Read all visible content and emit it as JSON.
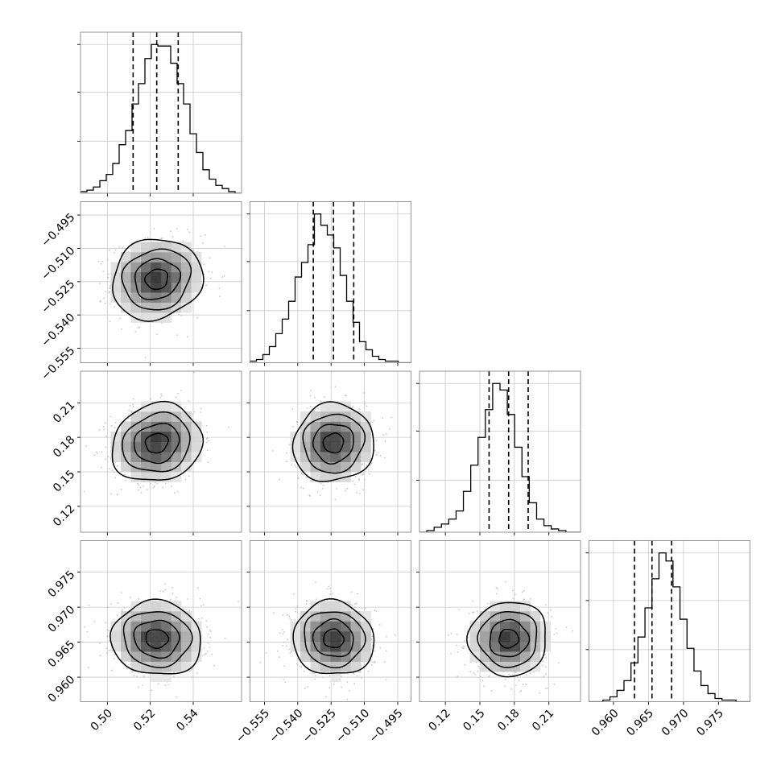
{
  "chart_data": {
    "type": "corner",
    "grid": true,
    "parameters": [
      {
        "median": 0.523,
        "q16": 0.512,
        "q84": 0.533,
        "range": [
          0.4875,
          0.5625
        ],
        "ticks": [
          0.5,
          0.52,
          0.54
        ],
        "tick_labels": [
          "0.50",
          "0.52",
          "0.54"
        ],
        "hist_counts": [
          1,
          2,
          4,
          8,
          12,
          19,
          31,
          40,
          57,
          70,
          86,
          95,
          94,
          94,
          83,
          70,
          57,
          38,
          26,
          15,
          9,
          5,
          3,
          1,
          0
        ]
      },
      {
        "median": -0.5239,
        "q16": -0.533,
        "q84": -0.5148,
        "range": [
          -0.5615,
          -0.489
        ],
        "ticks": [
          -0.555,
          -0.54,
          -0.525,
          -0.51,
          -0.495
        ],
        "tick_labels": [
          "−0.555",
          "−0.540",
          "−0.525",
          "−0.510",
          "−0.495"
        ],
        "hist_counts": [
          1,
          2,
          5,
          10,
          18,
          27,
          38,
          53,
          62,
          73,
          92,
          85,
          79,
          71,
          54,
          38,
          25,
          13,
          8,
          4,
          2,
          1,
          1,
          0,
          0
        ]
      },
      {
        "median": 0.175,
        "q16": 0.158,
        "q84": 0.192,
        "range": [
          0.0975,
          0.2375
        ],
        "ticks": [
          0.12,
          0.15,
          0.18,
          0.21
        ],
        "tick_labels": [
          "0.12",
          "0.15",
          "0.18",
          "0.21"
        ],
        "hist_counts": [
          0,
          1,
          3,
          5,
          8,
          13,
          25,
          41,
          58,
          75,
          91,
          87,
          72,
          52,
          34,
          18,
          8,
          4,
          2,
          1,
          0,
          0
        ]
      },
      {
        "median": 0.9655,
        "q16": 0.963,
        "q84": 0.9683,
        "range": [
          0.9565,
          0.9795
        ],
        "ticks": [
          0.96,
          0.965,
          0.97,
          0.975
        ],
        "tick_labels": [
          "0.960",
          "0.965",
          "0.970",
          "0.975"
        ],
        "hist_counts": [
          0,
          0,
          1,
          3,
          7,
          13,
          24,
          40,
          58,
          76,
          92,
          87,
          71,
          51,
          33,
          19,
          10,
          5,
          2,
          1,
          1,
          0,
          0
        ]
      }
    ],
    "correlations": [
      [
        1.0,
        0.1,
        0.12,
        -0.05
      ],
      [
        0.1,
        1.0,
        0.05,
        -0.05
      ],
      [
        0.12,
        0.05,
        1.0,
        0.02
      ],
      [
        -0.05,
        -0.05,
        0.02,
        1.0
      ]
    ],
    "contour_levels_sigma": [
      0.5,
      1.0,
      1.5,
      2.0
    ],
    "colors": {
      "line": "#000000",
      "points": "#b4b4b4",
      "grid": "#c9c9c9",
      "frame": "#888888"
    }
  }
}
